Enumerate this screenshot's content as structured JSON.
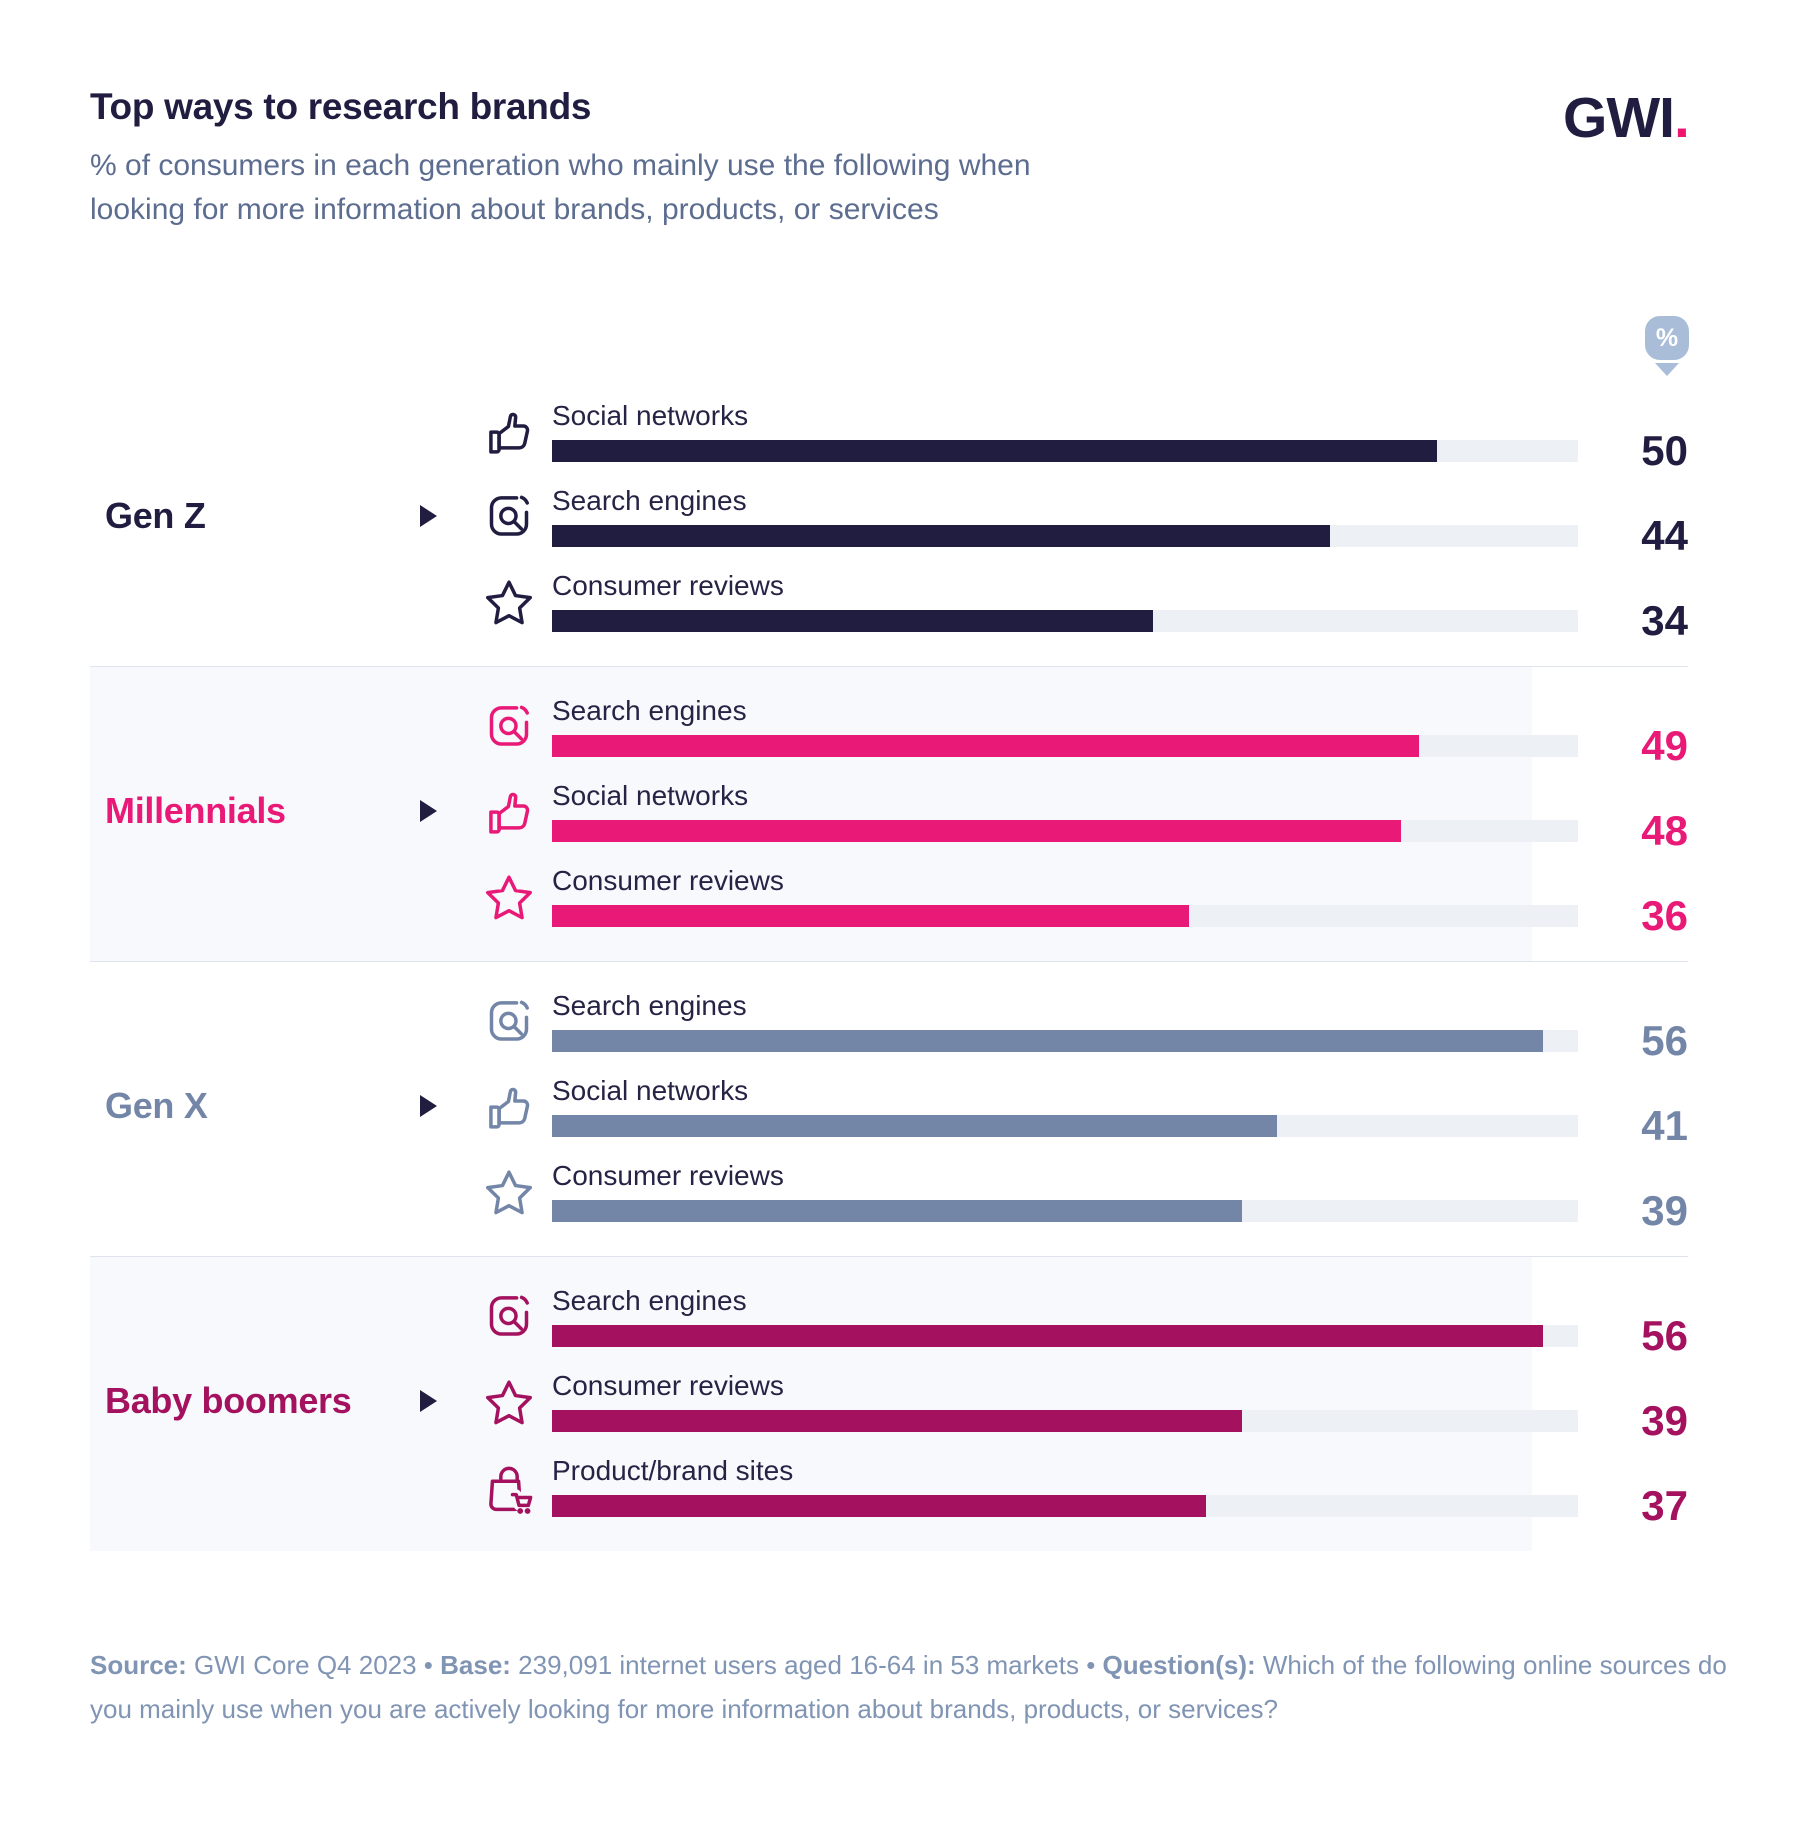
{
  "header": {
    "title": "Top ways to research brands",
    "subtitle": "% of consumers in each generation who mainly use the following when looking for more information about brands, products, or services",
    "logo_text": "GWI",
    "logo_dot": "."
  },
  "unit_badge": "%",
  "palette": {
    "navy": "#211d41",
    "pink": "#e91a77",
    "slate": "#7386a8",
    "maroon": "#a4125f",
    "track": "#edf0f5",
    "band": "#f7f9fc",
    "divider": "#dfe3ed",
    "subtitle_text": "#5c6d90",
    "footer_text": "#8094b4",
    "pin": "#a9bdd9",
    "logo_dot_color": "#f0156f"
  },
  "chart_data": {
    "type": "bar",
    "unit": "%",
    "bar_scale_max": 58,
    "grid": false,
    "groups": [
      {
        "generation": "Gen Z",
        "color": "#211d41",
        "band": false,
        "rows": [
          {
            "label": "Social networks",
            "icon": "thumbs-up",
            "value": 50
          },
          {
            "label": "Search engines",
            "icon": "search",
            "value": 44
          },
          {
            "label": "Consumer reviews",
            "icon": "star",
            "value": 34
          }
        ]
      },
      {
        "generation": "Millennials",
        "color": "#e91a77",
        "band": true,
        "rows": [
          {
            "label": "Search engines",
            "icon": "search",
            "value": 49
          },
          {
            "label": "Social networks",
            "icon": "thumbs-up",
            "value": 48
          },
          {
            "label": "Consumer reviews",
            "icon": "star",
            "value": 36
          }
        ]
      },
      {
        "generation": "Gen X",
        "color": "#7386a8",
        "band": false,
        "rows": [
          {
            "label": "Search engines",
            "icon": "search",
            "value": 56
          },
          {
            "label": "Social networks",
            "icon": "thumbs-up",
            "value": 41
          },
          {
            "label": "Consumer reviews",
            "icon": "star",
            "value": 39
          }
        ]
      },
      {
        "generation": "Baby boomers",
        "color": "#a4125f",
        "band": true,
        "rows": [
          {
            "label": "Search engines",
            "icon": "search",
            "value": 56
          },
          {
            "label": "Consumer reviews",
            "icon": "star",
            "value": 39
          },
          {
            "label": "Product/brand sites",
            "icon": "bag-cart",
            "value": 37
          }
        ]
      }
    ]
  },
  "footer": {
    "parts": [
      {
        "text": "Source:",
        "bold": true
      },
      {
        "text": " GWI Core Q4 2023 • ",
        "bold": false
      },
      {
        "text": "Base:",
        "bold": true
      },
      {
        "text": " 239,091 internet users aged 16-64 in 53 markets • ",
        "bold": false
      },
      {
        "text": "Question(s):",
        "bold": true
      },
      {
        "text": " Which of the following online sources do you mainly use when you are actively looking for more information about brands, products, or services?",
        "bold": false
      }
    ]
  }
}
